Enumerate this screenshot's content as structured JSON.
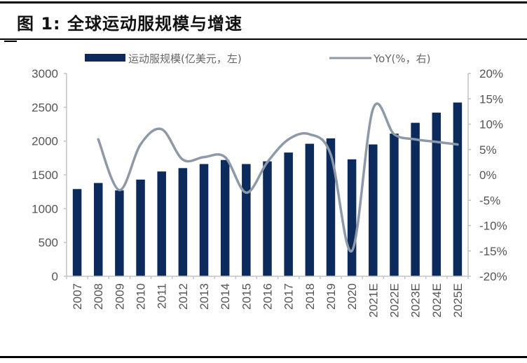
{
  "figure": {
    "title": "图 1:  全球运动服规模与增速"
  },
  "legend": {
    "bar_label": "运动服规模(亿美元，左)",
    "line_label": "YoY(%，右)"
  },
  "colors": {
    "bar": "#0c2a5b",
    "line": "#8d99a6"
  },
  "chart_data": {
    "type": "bar+line",
    "title": "图 1: 全球运动服规模与增速",
    "categories": [
      "2007",
      "2008",
      "2009",
      "2010",
      "2011",
      "2012",
      "2013",
      "2014",
      "2015",
      "2016",
      "2017",
      "2018",
      "2019",
      "2020",
      "2021E",
      "2022E",
      "2023E",
      "2024E",
      "2025E"
    ],
    "series": [
      {
        "name": "运动服规模(亿美元，左)",
        "type": "bar",
        "axis": "left",
        "values": [
          1290,
          1380,
          1270,
          1430,
          1550,
          1600,
          1660,
          1720,
          1660,
          1700,
          1830,
          1960,
          2040,
          1730,
          1950,
          2110,
          2270,
          2420,
          2570
        ]
      },
      {
        "name": "YoY(%，右)",
        "type": "line",
        "axis": "right",
        "values": [
          null,
          7,
          -3,
          6,
          9,
          3,
          3.5,
          3.5,
          -3.5,
          2.5,
          7,
          8,
          4,
          -15,
          13,
          8,
          7,
          6.5,
          6
        ]
      }
    ],
    "left_axis": {
      "ylim": [
        0,
        3000
      ],
      "ticks": [
        "0",
        "500",
        "1000",
        "1500",
        "2000",
        "2500",
        "3000"
      ]
    },
    "right_axis": {
      "ylim": [
        -20,
        20
      ],
      "ticks": [
        "-20%",
        "-15%",
        "-10%",
        "-5%",
        "0%",
        "5%",
        "10%",
        "15%",
        "20%"
      ]
    },
    "xlabel": "",
    "ylabel": "",
    "grid": false,
    "legend_position": "top"
  }
}
